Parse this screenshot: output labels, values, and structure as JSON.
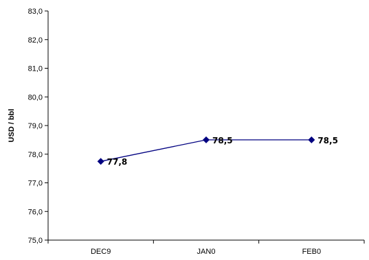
{
  "chart_data": {
    "type": "line",
    "categories": [
      "DEC9",
      "JAN0",
      "FEB0"
    ],
    "values": [
      77.75,
      78.5,
      78.5
    ],
    "data_labels": [
      "77,8",
      "78,5",
      "78,5"
    ],
    "ylabel": "USD / bbl",
    "ylim": [
      75.0,
      83.0
    ],
    "yticks": [
      "75,0",
      "76,0",
      "77,0",
      "78,0",
      "79,0",
      "80,0",
      "81,0",
      "82,0",
      "83,0"
    ],
    "grid": false,
    "line_color": "#000080",
    "marker": "diamond"
  }
}
